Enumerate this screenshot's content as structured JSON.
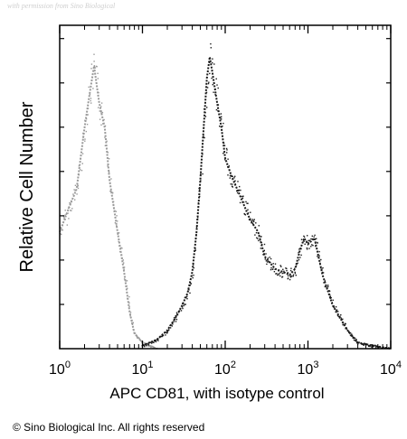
{
  "watermark": "with permission from Sino Biological",
  "copyright": "© Sino Biological Inc. All rights reserved",
  "chart_data": {
    "type": "area",
    "title": "",
    "xlabel": "APC CD81, with isotype control",
    "ylabel": "Relative Cell Number",
    "x_scale": "log",
    "xlim": [
      1,
      10000
    ],
    "ylim": [
      0,
      100
    ],
    "x_ticks": [
      {
        "value": 1,
        "base": "10",
        "exp": "0"
      },
      {
        "value": 10,
        "base": "10",
        "exp": "1"
      },
      {
        "value": 100,
        "base": "10",
        "exp": "2"
      },
      {
        "value": 1000,
        "base": "10",
        "exp": "3"
      },
      {
        "value": 10000,
        "base": "10",
        "exp": "4"
      }
    ],
    "grid": false,
    "legend": "none",
    "series": [
      {
        "role": "isotype-control",
        "color": "#9a9a9a",
        "x": [
          1.0,
          1.3,
          1.6,
          2.0,
          2.3,
          2.6,
          3.0,
          3.5,
          4.0,
          5.0,
          6.0,
          7.0,
          8.0,
          10.0,
          12.0,
          15.0
        ],
        "y": [
          38,
          46,
          52,
          72,
          83,
          92,
          80,
          72,
          55,
          38,
          25,
          12,
          5,
          2,
          1,
          0
        ]
      },
      {
        "role": "APC CD81",
        "color": "#1a1a1a",
        "x": [
          10,
          15,
          20,
          25,
          30,
          35,
          40,
          45,
          50,
          55,
          60,
          65,
          70,
          80,
          90,
          100,
          120,
          150,
          200,
          250,
          300,
          400,
          500,
          600,
          700,
          800,
          900,
          1000,
          1200,
          1500,
          2000,
          3000,
          4000,
          6000,
          10000
        ],
        "y": [
          1,
          3,
          6,
          10,
          14,
          18,
          25,
          38,
          55,
          72,
          88,
          95,
          90,
          80,
          72,
          62,
          56,
          50,
          42,
          38,
          30,
          26,
          25,
          24,
          26,
          32,
          36,
          34,
          36,
          24,
          14,
          6,
          2,
          1,
          0
        ]
      }
    ]
  }
}
